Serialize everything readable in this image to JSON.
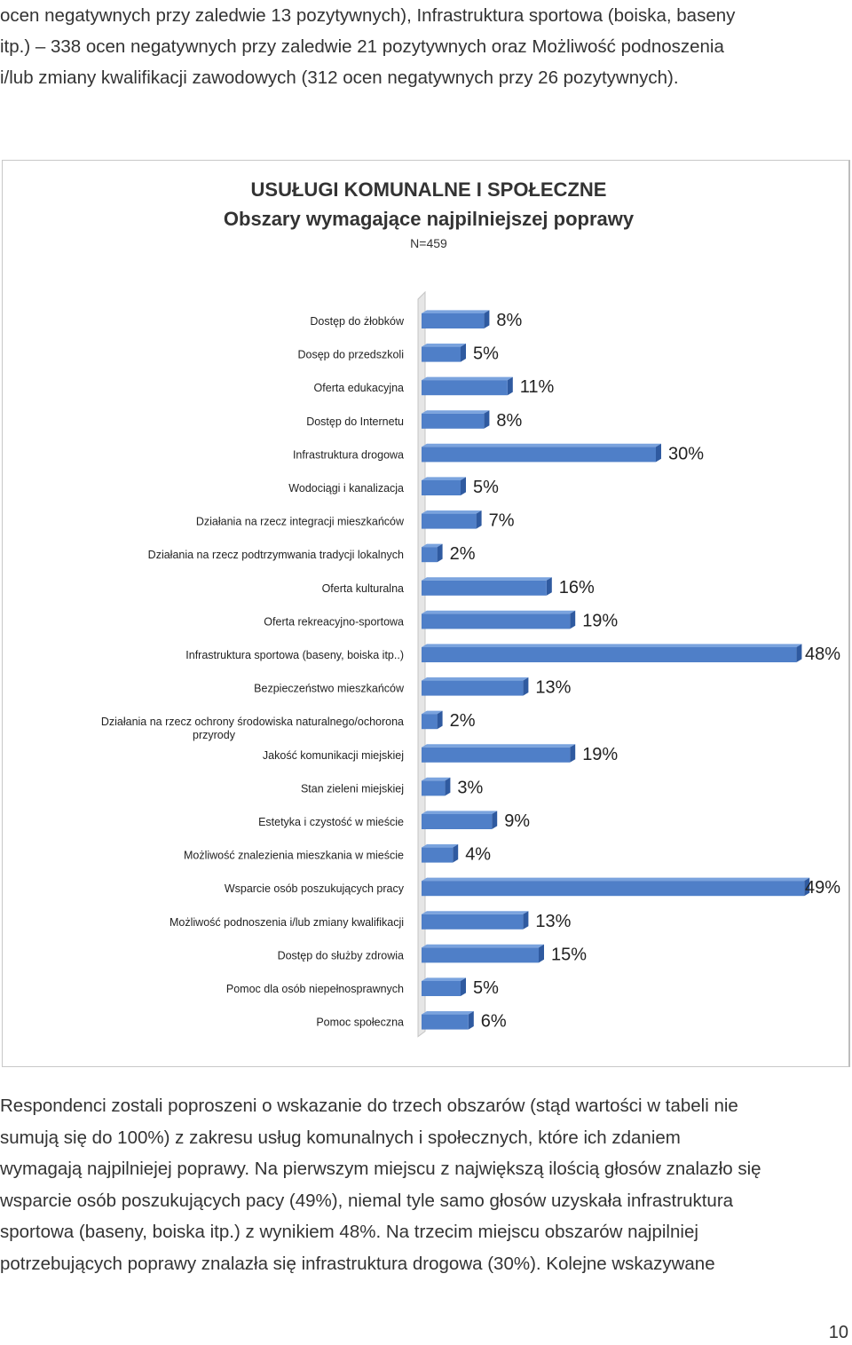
{
  "text_top": [
    "ocen negatywnych przy zaledwie 13 pozytywnych), Infrastruktura sportowa (boiska, baseny",
    "itp.) – 338 ocen negatywnych przy zaledwie 21 pozytywnych oraz Możliwość podnoszenia",
    "i/lub zmiany kwalifikacji zawodowych (312 ocen negatywnych przy 26 pozytywnych)."
  ],
  "chart_data": {
    "type": "bar",
    "orientation": "horizontal",
    "title": "USUŁUGI KOMUNALNE I SPOŁECZNE",
    "subtitle": "Obszary wymagające najpilniejszej poprawy",
    "note": "N=459",
    "bar_color": "#4f7fc8",
    "categories": [
      "Dostęp do żłobków",
      "Dosęp do przedszkoli",
      "Oferta edukacyjna",
      "Dostęp do Internetu",
      "Infrastruktura drogowa",
      "Wodociągi i kanalizacja",
      "Działania na rzecz integracji mieszkańców",
      "Działania na rzecz podtrzymwania tradycji lokalnych",
      "Oferta kulturalna",
      "Oferta rekreacyjno-sportowa",
      "Infrastruktura sportowa (baseny, boiska itp..)",
      "Bezpieczeństwo mieszkańców",
      "Działania na rzecz ochrony środowiska naturalnego/ochorona przyrody",
      "Jakość komunikacji miejskiej",
      "Stan zieleni miejskiej",
      "Estetyka i czystość w mieście",
      "Możliwość znalezienia mieszkania w mieście",
      "Wsparcie osób poszukujących pracy",
      "Możliwość podnoszenia i/lub zmiany kwalifikacji",
      "Dostęp do służby zdrowia",
      "Pomoc dla osób niepełnosprawnych",
      "Pomoc społeczna"
    ],
    "values": [
      8,
      5,
      11,
      8,
      30,
      5,
      7,
      2,
      16,
      19,
      48,
      13,
      2,
      19,
      3,
      9,
      4,
      49,
      13,
      15,
      5,
      6
    ],
    "value_labels": [
      "8%",
      "5%",
      "11%",
      "8%",
      "30%",
      "5%",
      "7%",
      "2%",
      "16%",
      "19%",
      "48%",
      "13%",
      "2%",
      "19%",
      "3%",
      "9%",
      "4%",
      "49%",
      "13%",
      "15%",
      "5%",
      "6%"
    ],
    "xlim": [
      0,
      50
    ]
  },
  "text_bottom": [
    "Respondenci zostali poproszeni o wskazanie do trzech obszarów (stąd wartości w tabeli nie",
    "sumują się do 100%) z zakresu usług komunalnych i społecznych, które ich zdaniem",
    "wymagają najpilniejej poprawy. Na pierwszym miejscu z największą ilością głosów znalazło się",
    "wsparcie osób poszukujących pacy (49%), niemal tyle samo głosów uzyskała infrastruktura",
    "sportowa (baseny, boiska itp.) z wynikiem 48%. Na trzecim miejscu obszarów najpilniej",
    "potrzebujących poprawy znalazła się infrastruktura drogowa (30%). Kolejne wskazywane"
  ],
  "page_number": "10"
}
